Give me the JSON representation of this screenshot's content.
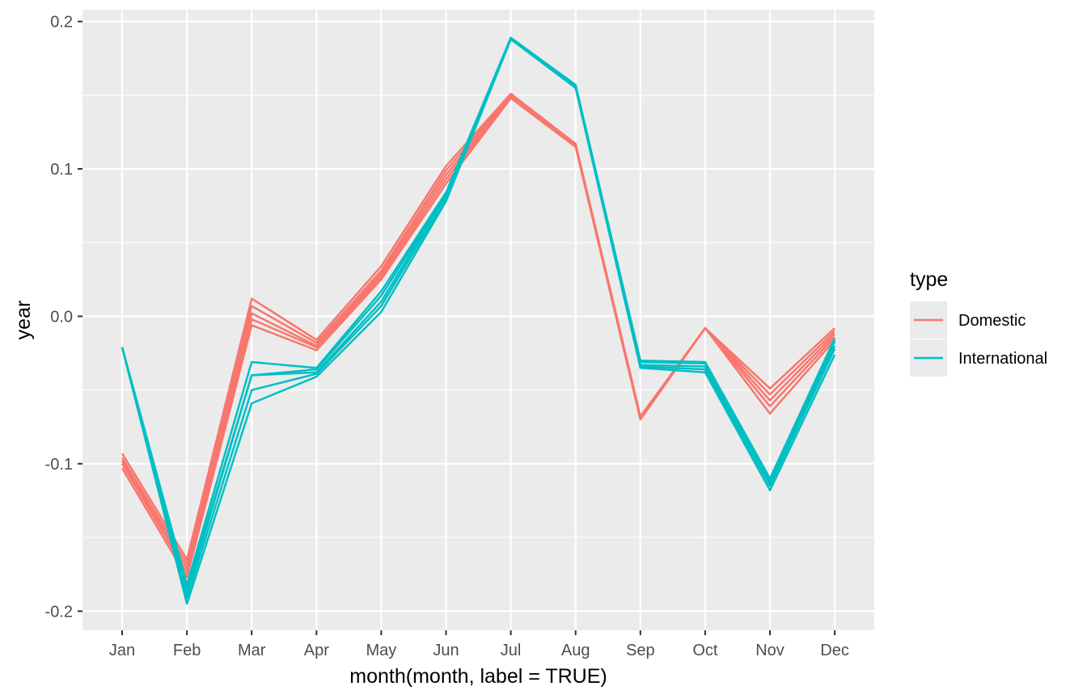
{
  "chart_data": {
    "type": "line",
    "xlabel": "month(month, label = TRUE)",
    "ylabel": "year",
    "categories": [
      "Jan",
      "Feb",
      "Mar",
      "Apr",
      "May",
      "Jun",
      "Jul",
      "Aug",
      "Sep",
      "Oct",
      "Nov",
      "Dec"
    ],
    "ylim": [
      -0.213,
      0.208
    ],
    "y_ticks": [
      -0.2,
      -0.1,
      0.0,
      0.1,
      0.2
    ],
    "y_tick_labels": [
      "-0.2",
      "-0.1",
      "0.0",
      "0.1",
      "0.2"
    ],
    "grid": true,
    "legend": {
      "title": "type",
      "position": "right",
      "entries": [
        {
          "label": "Domestic",
          "color": "#F8766D"
        },
        {
          "label": "International",
          "color": "#00BFC4"
        }
      ]
    },
    "series": [
      {
        "type": "Domestic",
        "color": "#F8766D",
        "values": [
          -0.093,
          -0.165,
          0.012,
          -0.016,
          0.034,
          0.102,
          0.151,
          0.117,
          -0.068,
          -0.008,
          -0.049,
          -0.008
        ]
      },
      {
        "type": "Domestic",
        "color": "#F8766D",
        "values": [
          -0.096,
          -0.168,
          0.007,
          -0.018,
          0.031,
          0.099,
          0.15,
          0.116,
          -0.068,
          -0.008,
          -0.053,
          -0.01
        ]
      },
      {
        "type": "Domestic",
        "color": "#F8766D",
        "values": [
          -0.098,
          -0.171,
          0.002,
          -0.02,
          0.029,
          0.096,
          0.149,
          0.116,
          -0.069,
          -0.008,
          -0.057,
          -0.012
        ]
      },
      {
        "type": "Domestic",
        "color": "#F8766D",
        "values": [
          -0.1,
          -0.174,
          -0.002,
          -0.021,
          0.027,
          0.093,
          0.149,
          0.116,
          -0.069,
          -0.008,
          -0.061,
          -0.014
        ]
      },
      {
        "type": "Domestic",
        "color": "#F8766D",
        "values": [
          -0.103,
          -0.177,
          -0.006,
          -0.023,
          0.025,
          0.09,
          0.148,
          0.115,
          -0.07,
          -0.008,
          -0.066,
          -0.016
        ]
      },
      {
        "type": "International",
        "color": "#00BFC4",
        "values": [
          -0.021,
          -0.182,
          -0.031,
          -0.035,
          0.017,
          0.084,
          0.189,
          0.157,
          -0.03,
          -0.031,
          -0.11,
          -0.015
        ]
      },
      {
        "type": "International",
        "color": "#00BFC4",
        "values": [
          -0.021,
          -0.185,
          -0.04,
          -0.036,
          0.014,
          0.083,
          0.189,
          0.156,
          -0.031,
          -0.032,
          -0.111,
          -0.017
        ]
      },
      {
        "type": "International",
        "color": "#00BFC4",
        "values": [
          -0.021,
          -0.188,
          -0.04,
          -0.038,
          0.01,
          0.082,
          0.188,
          0.156,
          -0.033,
          -0.034,
          -0.113,
          -0.02
        ]
      },
      {
        "type": "International",
        "color": "#00BFC4",
        "values": [
          -0.021,
          -0.191,
          -0.05,
          -0.039,
          0.007,
          0.08,
          0.188,
          0.155,
          -0.034,
          -0.036,
          -0.115,
          -0.022
        ]
      },
      {
        "type": "International",
        "color": "#00BFC4",
        "values": [
          -0.021,
          -0.195,
          -0.059,
          -0.041,
          0.003,
          0.078,
          0.188,
          0.155,
          -0.035,
          -0.038,
          -0.118,
          -0.026
        ]
      }
    ]
  }
}
